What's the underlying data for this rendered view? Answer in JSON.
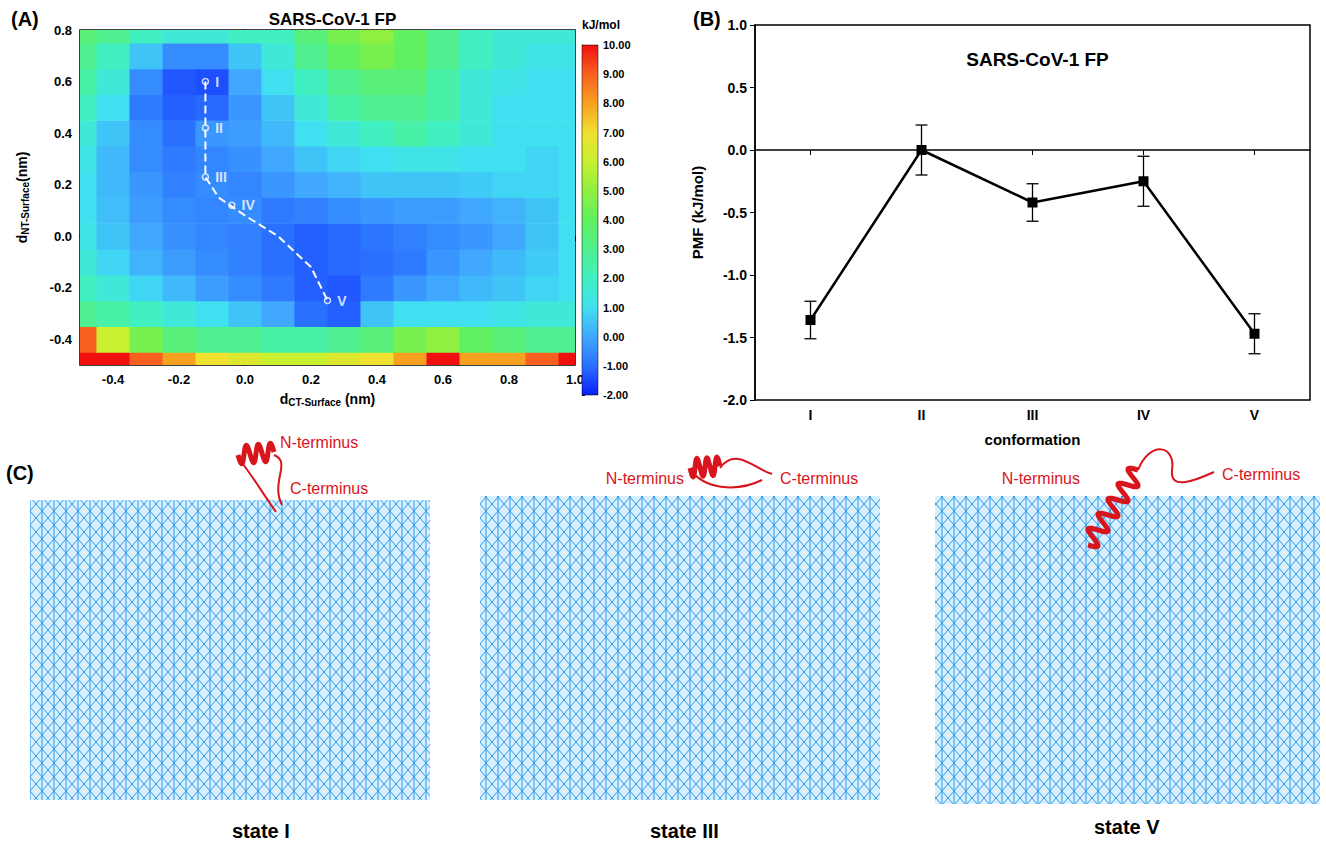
{
  "chart_data": [
    {
      "type": "heatmap",
      "panel": "(A)",
      "title": "SARS-CoV-1 FP",
      "xlabel": [
        {
          "text": "d"
        },
        {
          "text": "CT-Surface",
          "sub": true
        },
        {
          "text": " (nm)"
        }
      ],
      "ylabel": [
        {
          "text": "d"
        },
        {
          "text": "NT-Surface",
          "sub": true
        },
        {
          "text": "(nm)"
        }
      ],
      "xlim": [
        -0.5,
        1.0
      ],
      "ylim": [
        -0.5,
        0.8
      ],
      "xticks": [
        -0.4,
        -0.2,
        {
          "value": 0,
          "label": "0.0"
        },
        0.2,
        0.4,
        0.6,
        0.8,
        {
          "value": 1,
          "label": "1.0"
        }
      ],
      "yticks": [
        -0.4,
        -0.2,
        {
          "value": 0,
          "label": "0.0"
        },
        0.2,
        0.4,
        0.6,
        0.8
      ],
      "x": [
        -0.5,
        -0.4,
        -0.3,
        -0.2,
        -0.1,
        0.0,
        0.1,
        0.2,
        0.3,
        0.4,
        0.5,
        0.6,
        0.7,
        0.8,
        0.9,
        1.0
      ],
      "y": [
        -0.5,
        -0.4,
        -0.3,
        -0.2,
        -0.1,
        0.0,
        0.1,
        0.2,
        0.3,
        0.4,
        0.5,
        0.6,
        0.7,
        0.8
      ],
      "cells": [
        [
          10,
          10,
          9,
          8,
          7,
          6.5,
          6,
          6,
          6.5,
          7,
          8,
          10,
          8,
          8,
          9,
          10
        ],
        [
          9,
          6,
          4.5,
          3.5,
          3,
          3,
          2.5,
          2.5,
          3,
          3.5,
          4.5,
          5,
          4,
          3.5,
          3,
          3
        ],
        [
          3,
          2.5,
          2,
          1.5,
          1,
          0.5,
          0,
          -1.0,
          -1.2,
          0.5,
          1,
          1,
          1,
          1.2,
          1.5,
          1.5
        ],
        [
          2,
          1.5,
          0.8,
          0.3,
          -0.2,
          -0.5,
          -0.8,
          -1.2,
          -1.3,
          -0.8,
          -0.3,
          0,
          0.3,
          0.5,
          0.8,
          1
        ],
        [
          1.5,
          0.8,
          0.2,
          -0.2,
          -0.5,
          -0.7,
          -1.0,
          -1.2,
          -1.1,
          -1.0,
          -0.8,
          -0.3,
          0,
          0.3,
          0.6,
          1
        ],
        [
          1.2,
          0.5,
          0,
          -0.4,
          -0.6,
          -0.7,
          -1.0,
          -1.2,
          -1.1,
          -0.9,
          -0.7,
          -0.5,
          -0.3,
          0,
          0.5,
          1
        ],
        [
          1,
          0.4,
          -0.2,
          -0.5,
          -0.6,
          -0.5,
          -0.8,
          -0.7,
          -0.5,
          -0.3,
          -0.2,
          -0.2,
          0,
          0.2,
          0.5,
          1
        ],
        [
          1,
          0.3,
          -0.3,
          -0.7,
          -0.5,
          -0.6,
          -0.3,
          0,
          0.2,
          0.5,
          0.5,
          0.5,
          0.6,
          0.8,
          0.8,
          1
        ],
        [
          1.2,
          0.3,
          -0.5,
          -0.8,
          -0.6,
          -0.4,
          0,
          0.5,
          0.8,
          1,
          1.2,
          1.2,
          1,
          1,
          0.8,
          1
        ],
        [
          1.5,
          0.5,
          -0.5,
          -1.0,
          -0.3,
          -0.2,
          0.3,
          1,
          1.5,
          2,
          2.5,
          2,
          1.5,
          1,
          1,
          1
        ],
        [
          2,
          1,
          -0.8,
          -1.2,
          -1.1,
          -0.3,
          0.5,
          1.5,
          2.5,
          3,
          3,
          2.5,
          1.5,
          1,
          1,
          1
        ],
        [
          2.5,
          1.5,
          -0.5,
          -1.3,
          -1.4,
          0,
          1,
          2,
          3,
          3.5,
          3.5,
          2.5,
          1.5,
          1.2,
          1,
          1
        ],
        [
          3,
          2,
          0.5,
          -0.5,
          -0.5,
          0.5,
          1.5,
          3,
          4,
          4.5,
          4,
          3,
          2,
          1.5,
          1.2,
          1.2
        ],
        [
          3.5,
          3,
          2,
          1.5,
          1.5,
          2,
          2,
          3.5,
          4.5,
          5,
          4,
          3,
          2,
          1.5,
          1.5,
          1.5
        ]
      ],
      "colorbar": {
        "title": "kJ/mol",
        "range": [
          -2,
          10
        ],
        "ticks": [
          {
            "value": -2,
            "label": "-2.00"
          },
          {
            "value": -1,
            "label": "-1.00"
          },
          {
            "value": 0,
            "label": "0.00"
          },
          {
            "value": 1,
            "label": "1.00"
          },
          {
            "value": 2,
            "label": "2.00"
          },
          {
            "value": 3,
            "label": "3.00"
          },
          {
            "value": 4,
            "label": "4.00"
          },
          {
            "value": 5,
            "label": "5.00"
          },
          {
            "value": 6,
            "label": "6.00"
          },
          {
            "value": 7,
            "label": "7.00"
          },
          {
            "value": 8,
            "label": "8.00"
          },
          {
            "value": 9,
            "label": "9.00"
          },
          {
            "value": 10,
            "label": "10.00"
          }
        ]
      },
      "path": {
        "x": [
          -0.12,
          -0.12,
          -0.12,
          -0.08,
          0.0,
          0.1,
          0.2,
          0.25
        ],
        "y": [
          0.6,
          0.4,
          0.23,
          0.15,
          0.08,
          0.0,
          -0.12,
          -0.25
        ],
        "line_style": "dashed",
        "color": "#ffffff"
      },
      "states": {
        "labels": [
          "I",
          "II",
          "III",
          "IV",
          "V"
        ],
        "x": [
          -0.12,
          -0.12,
          -0.12,
          -0.04,
          0.25
        ],
        "y": [
          0.6,
          0.42,
          0.23,
          0.12,
          -0.25
        ],
        "marker": "circle",
        "color": "#ffffff"
      }
    },
    {
      "type": "line",
      "panel": "(B)",
      "title": "SARS-CoV-1 FP",
      "xlabel": "conformation",
      "ylabel": "PMF (kJ/mol)",
      "categories": [
        "I",
        "II",
        "III",
        "IV",
        "V"
      ],
      "values": [
        -1.36,
        0,
        -0.42,
        -0.25,
        -1.47
      ],
      "errors": [
        0.15,
        0.2,
        0.15,
        0.2,
        0.16
      ],
      "ylim": [
        -2,
        1
      ],
      "yticks": [
        {
          "value": -2,
          "label": "-2.0"
        },
        -1.5,
        {
          "value": -1,
          "label": "-1.0"
        },
        -0.5,
        {
          "value": 0,
          "label": "0.0"
        },
        0.5,
        {
          "value": 1,
          "label": "1.0"
        }
      ],
      "color": "#000000",
      "marker": "square"
    }
  ],
  "panel_c": {
    "panel": "(C)",
    "states": [
      {
        "name": "state I",
        "n_label": "N-terminus",
        "c_label": "C-terminus"
      },
      {
        "name": "state III",
        "n_label": "N-terminus",
        "c_label": "C-terminus"
      },
      {
        "name": "state V",
        "n_label": "N-terminus",
        "c_label": "C-terminus"
      }
    ]
  }
}
